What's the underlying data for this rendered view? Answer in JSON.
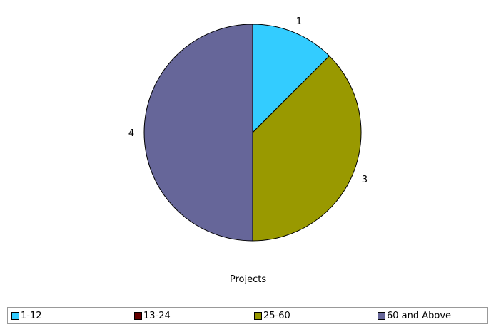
{
  "chart_data": {
    "type": "pie",
    "title": "Projects",
    "categories": [
      "1-12",
      "13-24",
      "25-60",
      "60 and Above"
    ],
    "values": [
      1,
      0,
      3,
      4
    ],
    "colors": [
      "#33ccff",
      "#660000",
      "#999900",
      "#666699"
    ],
    "slice_labels": [
      "1",
      "",
      "3",
      "4"
    ],
    "start_angle_deg": 0,
    "direction": "clockwise",
    "legend_position": "bottom"
  }
}
